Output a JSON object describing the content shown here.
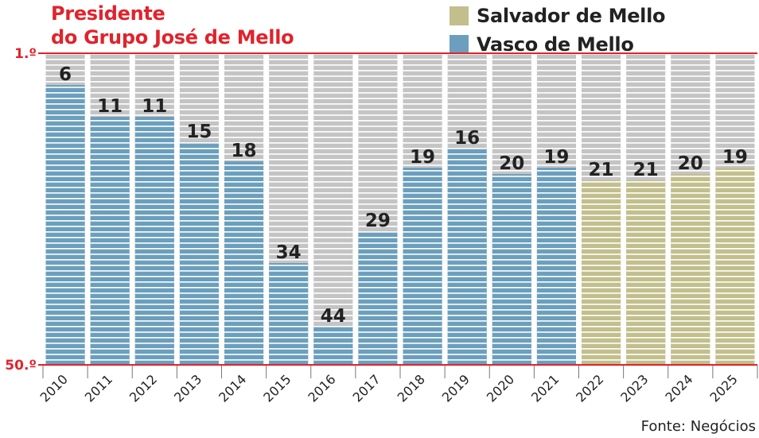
{
  "title_lines": [
    "Presidente",
    "do Grupo José de Mello"
  ],
  "source": "Fonte: Negócios",
  "colors": {
    "salvador": "#c2bf8d",
    "vasco": "#6b9fbd",
    "background_bar": "#c4c4c4",
    "accent_red": "#e1232b",
    "stripe": "#ffffff"
  },
  "chart_data": {
    "type": "bar",
    "title": "Presidente do Grupo José de Mello",
    "categories": [
      "2010",
      "2011",
      "2012",
      "2013",
      "2014",
      "2015",
      "2016",
      "2017",
      "2018",
      "2019",
      "2020",
      "2021",
      "2022",
      "2023",
      "2024",
      "2025"
    ],
    "values": [
      6,
      11,
      11,
      15,
      18,
      34,
      44,
      29,
      19,
      16,
      20,
      19,
      21,
      21,
      20,
      19
    ],
    "series_assignment": [
      "Vasco de Mello",
      "Vasco de Mello",
      "Vasco de Mello",
      "Vasco de Mello",
      "Vasco de Mello",
      "Vasco de Mello",
      "Vasco de Mello",
      "Vasco de Mello",
      "Vasco de Mello",
      "Vasco de Mello",
      "Vasco de Mello",
      "Vasco de Mello",
      "Salvador de Mello",
      "Salvador de Mello",
      "Salvador de Mello",
      "Salvador de Mello"
    ],
    "series": [
      {
        "name": "Salvador de Mello",
        "color": "#c2bf8d"
      },
      {
        "name": "Vasco de Mello",
        "color": "#6b9fbd"
      }
    ],
    "y_axis": {
      "top_label": "1.º",
      "bottom_label": "50.º",
      "top_value": 1,
      "bottom_value": 50,
      "inverted": true
    },
    "legend_position": "top-right",
    "grid": false
  }
}
